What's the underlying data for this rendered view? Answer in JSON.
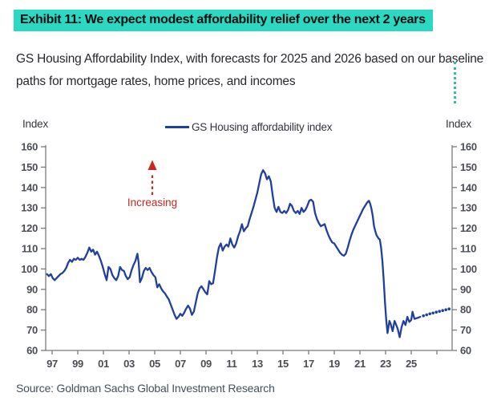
{
  "header": {
    "exhibit_title": "Exhibit 11: We expect modest affordability relief over the next 2 years",
    "subtitle": "GS Housing Affordability Index, with forecasts for 2025 and 2026 based on our baseline\npaths for mortgage rates, home prices, and incomes"
  },
  "footer": {
    "source": "Source: Goldman Sachs Global Investment Research"
  },
  "colors": {
    "highlight": "#2bd8c2",
    "line_navy": "#20409d",
    "annotation_red": "#c8271e",
    "axis_gray": "#7b7b7b",
    "tick_text": "#4b4d55",
    "source_text": "#44505c",
    "artifact_teal": "#35b9a8"
  },
  "chart_data": {
    "type": "line",
    "legend_label": "GS Housing affordability index",
    "left_axis_title": "Index",
    "right_axis_title": "Index",
    "ylim": [
      60,
      160
    ],
    "yticks": [
      60,
      70,
      80,
      90,
      100,
      110,
      120,
      130,
      140,
      150,
      160
    ],
    "xticks": [
      {
        "year": 1997,
        "label": "97"
      },
      {
        "year": 1999,
        "label": "99"
      },
      {
        "year": 2001,
        "label": "01"
      },
      {
        "year": 2003,
        "label": "03"
      },
      {
        "year": 2005,
        "label": "05"
      },
      {
        "year": 2007,
        "label": "07"
      },
      {
        "year": 2009,
        "label": "09"
      },
      {
        "year": 2011,
        "label": "11"
      },
      {
        "year": 2013,
        "label": "13"
      },
      {
        "year": 2015,
        "label": "15"
      },
      {
        "year": 2017,
        "label": "17"
      },
      {
        "year": 2019,
        "label": "19"
      },
      {
        "year": 2021,
        "label": "21"
      },
      {
        "year": 2023,
        "label": "23"
      },
      {
        "year": 2025,
        "label": "25"
      },
      {
        "year": 2027,
        "label": ""
      }
    ],
    "forecast_period": "2025 and 2026",
    "annotation": {
      "label": "Increasing",
      "arrow": "up",
      "color": "#c8271e"
    },
    "series": [
      {
        "name": "GS Housing affordability index (history)",
        "style": "solid",
        "color": "#20409d",
        "points": [
          [
            1996.6,
            97.5
          ],
          [
            1996.75,
            96.5
          ],
          [
            1996.9,
            97.5
          ],
          [
            1997.05,
            95.5
          ],
          [
            1997.2,
            94.5
          ],
          [
            1997.35,
            95.5
          ],
          [
            1997.5,
            96.5
          ],
          [
            1997.65,
            97.5
          ],
          [
            1997.8,
            98
          ],
          [
            1997.95,
            99
          ],
          [
            1998.1,
            100.5
          ],
          [
            1998.25,
            103
          ],
          [
            1998.4,
            104.5
          ],
          [
            1998.55,
            103.5
          ],
          [
            1998.7,
            105
          ],
          [
            1998.85,
            104.5
          ],
          [
            1999.0,
            105.5
          ],
          [
            1999.15,
            104.5
          ],
          [
            1999.3,
            105
          ],
          [
            1999.45,
            104.5
          ],
          [
            1999.6,
            106
          ],
          [
            1999.75,
            108
          ],
          [
            1999.9,
            110.5
          ],
          [
            2000.05,
            108.5
          ],
          [
            2000.2,
            109.5
          ],
          [
            2000.35,
            107
          ],
          [
            2000.5,
            108.5
          ],
          [
            2000.65,
            106.5
          ],
          [
            2000.8,
            104
          ],
          [
            2000.95,
            101
          ],
          [
            2001.1,
            97.5
          ],
          [
            2001.25,
            94.5
          ],
          [
            2001.4,
            101
          ],
          [
            2001.55,
            100
          ],
          [
            2001.7,
            97
          ],
          [
            2001.85,
            95.5
          ],
          [
            2002.0,
            94.5
          ],
          [
            2002.15,
            96.5
          ],
          [
            2002.3,
            101
          ],
          [
            2002.45,
            99.5
          ],
          [
            2002.6,
            99
          ],
          [
            2002.75,
            96.5
          ],
          [
            2002.9,
            95
          ],
          [
            2003.05,
            96
          ],
          [
            2003.2,
            99.5
          ],
          [
            2003.35,
            102
          ],
          [
            2003.5,
            104
          ],
          [
            2003.65,
            107.5
          ],
          [
            2003.75,
            103
          ],
          [
            2003.85,
            93.5
          ],
          [
            2004.0,
            95.5
          ],
          [
            2004.15,
            99
          ],
          [
            2004.3,
            100.5
          ],
          [
            2004.45,
            99.5
          ],
          [
            2004.6,
            100.5
          ],
          [
            2004.75,
            98.5
          ],
          [
            2004.9,
            97
          ],
          [
            2005.05,
            96
          ],
          [
            2005.2,
            91
          ],
          [
            2005.35,
            92.5
          ],
          [
            2005.5,
            90.5
          ],
          [
            2005.65,
            89
          ],
          [
            2005.8,
            88
          ],
          [
            2005.95,
            86.5
          ],
          [
            2006.1,
            85
          ],
          [
            2006.25,
            82.5
          ],
          [
            2006.4,
            80
          ],
          [
            2006.55,
            77.5
          ],
          [
            2006.7,
            75.5
          ],
          [
            2006.85,
            76.5
          ],
          [
            2007.0,
            78
          ],
          [
            2007.15,
            77
          ],
          [
            2007.3,
            78.5
          ],
          [
            2007.45,
            80.5
          ],
          [
            2007.6,
            82
          ],
          [
            2007.75,
            80.5
          ],
          [
            2007.9,
            77.5
          ],
          [
            2008.05,
            79
          ],
          [
            2008.2,
            83.5
          ],
          [
            2008.35,
            88
          ],
          [
            2008.5,
            90.5
          ],
          [
            2008.65,
            91.5
          ],
          [
            2008.8,
            90
          ],
          [
            2008.95,
            88.5
          ],
          [
            2009.1,
            87.5
          ],
          [
            2009.25,
            94
          ],
          [
            2009.4,
            92.5
          ],
          [
            2009.55,
            93
          ],
          [
            2009.7,
            99
          ],
          [
            2009.85,
            105.5
          ],
          [
            2010.0,
            110.5
          ],
          [
            2010.15,
            112.5
          ],
          [
            2010.3,
            109
          ],
          [
            2010.45,
            111
          ],
          [
            2010.6,
            112
          ],
          [
            2010.75,
            111
          ],
          [
            2010.9,
            115
          ],
          [
            2011.05,
            112
          ],
          [
            2011.2,
            110.5
          ],
          [
            2011.35,
            112.5
          ],
          [
            2011.5,
            116
          ],
          [
            2011.65,
            118.5
          ],
          [
            2011.8,
            122
          ],
          [
            2011.95,
            118.5
          ],
          [
            2012.1,
            120
          ],
          [
            2012.25,
            121
          ],
          [
            2012.4,
            124.5
          ],
          [
            2012.55,
            127.5
          ],
          [
            2012.7,
            130.5
          ],
          [
            2012.85,
            134
          ],
          [
            2013.0,
            137.5
          ],
          [
            2013.15,
            142
          ],
          [
            2013.3,
            146.5
          ],
          [
            2013.45,
            148.5
          ],
          [
            2013.6,
            147
          ],
          [
            2013.75,
            144
          ],
          [
            2013.9,
            145.5
          ],
          [
            2014.05,
            143
          ],
          [
            2014.2,
            136
          ],
          [
            2014.35,
            130
          ],
          [
            2014.5,
            128
          ],
          [
            2014.65,
            130.5
          ],
          [
            2014.8,
            128
          ],
          [
            2014.95,
            127.5
          ],
          [
            2015.1,
            128.5
          ],
          [
            2015.25,
            127.5
          ],
          [
            2015.4,
            129
          ],
          [
            2015.55,
            132
          ],
          [
            2015.7,
            131
          ],
          [
            2015.85,
            128.5
          ],
          [
            2016.0,
            127.5
          ],
          [
            2016.15,
            128.5
          ],
          [
            2016.3,
            127
          ],
          [
            2016.45,
            130
          ],
          [
            2016.6,
            128
          ],
          [
            2016.75,
            129
          ],
          [
            2016.9,
            131
          ],
          [
            2017.05,
            133.5
          ],
          [
            2017.2,
            134
          ],
          [
            2017.35,
            133
          ],
          [
            2017.5,
            127.5
          ],
          [
            2017.65,
            124.5
          ],
          [
            2017.8,
            122.5
          ],
          [
            2017.95,
            121
          ],
          [
            2018.1,
            121.5
          ],
          [
            2018.25,
            122
          ],
          [
            2018.4,
            119
          ],
          [
            2018.55,
            116.5
          ],
          [
            2018.7,
            114.5
          ],
          [
            2018.85,
            113
          ],
          [
            2019.0,
            112.5
          ],
          [
            2019.15,
            111
          ],
          [
            2019.3,
            109.5
          ],
          [
            2019.45,
            108
          ],
          [
            2019.6,
            107
          ],
          [
            2019.75,
            106.5
          ],
          [
            2019.9,
            107.5
          ],
          [
            2020.05,
            110.5
          ],
          [
            2020.2,
            114
          ],
          [
            2020.35,
            117
          ],
          [
            2020.5,
            119.5
          ],
          [
            2020.65,
            121.5
          ],
          [
            2020.8,
            123.5
          ],
          [
            2020.95,
            125.5
          ],
          [
            2021.1,
            127.5
          ],
          [
            2021.25,
            129.5
          ],
          [
            2021.4,
            131
          ],
          [
            2021.55,
            132.5
          ],
          [
            2021.7,
            133.5
          ],
          [
            2021.8,
            132
          ],
          [
            2021.9,
            129.5
          ],
          [
            2022.0,
            126
          ],
          [
            2022.1,
            121
          ],
          [
            2022.2,
            118.5
          ],
          [
            2022.3,
            116.5
          ],
          [
            2022.45,
            115
          ],
          [
            2022.55,
            114.5
          ],
          [
            2022.65,
            110.5
          ],
          [
            2022.75,
            104
          ],
          [
            2022.85,
            95
          ],
          [
            2022.95,
            84
          ],
          [
            2023.05,
            75
          ],
          [
            2023.15,
            68.5
          ],
          [
            2023.3,
            74.5
          ],
          [
            2023.4,
            73
          ],
          [
            2023.55,
            69.5
          ],
          [
            2023.7,
            74.5
          ],
          [
            2023.8,
            73
          ],
          [
            2023.95,
            70.5
          ],
          [
            2024.1,
            66.5
          ],
          [
            2024.25,
            71.5
          ],
          [
            2024.4,
            74.5
          ],
          [
            2024.55,
            72.5
          ],
          [
            2024.7,
            76.5
          ],
          [
            2024.85,
            74
          ],
          [
            2025.0,
            75
          ],
          [
            2025.1,
            79
          ],
          [
            2025.25,
            75.5
          ],
          [
            2025.5,
            76
          ],
          [
            2025.7,
            76.5
          ]
        ]
      },
      {
        "name": "GS forecast for 2025 and 2026",
        "style": "dotted",
        "color": "#20409d",
        "points": [
          [
            2025.95,
            77
          ],
          [
            2026.2,
            77.5
          ],
          [
            2026.45,
            78
          ],
          [
            2026.7,
            78.4
          ],
          [
            2026.95,
            78.8
          ],
          [
            2027.2,
            79.2
          ],
          [
            2027.45,
            79.6
          ],
          [
            2027.7,
            80
          ],
          [
            2027.95,
            80.4
          ]
        ]
      }
    ]
  }
}
